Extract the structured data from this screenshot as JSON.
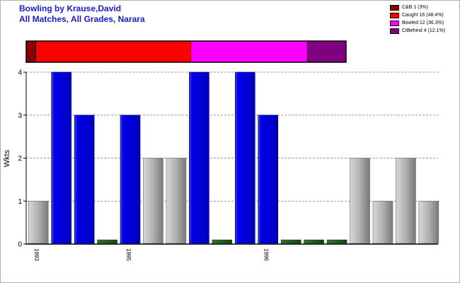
{
  "title_line1": "Bowling by Krause,David",
  "title_line2": "All Matches, All Grades, Narara",
  "colors": {
    "title": "#1a1ad0",
    "wicket_bar": "#0000e0",
    "zero_bar": "#1a5e1a",
    "none_bar": "#a8a8a8",
    "candb": "#8b0000",
    "caught": "#ff0000",
    "bowled": "#ff00ff",
    "ctbehind": "#800080"
  },
  "legend": [
    {
      "label": "C&B 1 (3%)",
      "color": "#8b0000"
    },
    {
      "label": "Caught 16 (48.4%)",
      "color": "#ff0000"
    },
    {
      "label": "Bowled 12 (36.3%)",
      "color": "#ff00ff"
    },
    {
      "label": "CtBehind 4 (12.1%)",
      "color": "#800080"
    }
  ],
  "chart_data": {
    "type": "bar",
    "ylabel": "Wkts",
    "ylim": [
      0,
      4
    ],
    "yticks": [
      0,
      1,
      2,
      3,
      4
    ],
    "grid": "horizontal dashed",
    "x_labels": [
      {
        "index": 0,
        "text": "1993"
      },
      {
        "index": 4,
        "text": "1995"
      },
      {
        "index": 10,
        "text": "1996"
      }
    ],
    "bars": [
      {
        "value": 1,
        "kind": "none"
      },
      {
        "value": 4,
        "kind": "wickets"
      },
      {
        "value": 3,
        "kind": "wickets"
      },
      {
        "value": 0,
        "kind": "zero"
      },
      {
        "value": 3,
        "kind": "wickets"
      },
      {
        "value": 2,
        "kind": "none"
      },
      {
        "value": 2,
        "kind": "none"
      },
      {
        "value": 4,
        "kind": "wickets"
      },
      {
        "value": 0,
        "kind": "zero"
      },
      {
        "value": 4,
        "kind": "wickets"
      },
      {
        "value": 3,
        "kind": "wickets"
      },
      {
        "value": 0,
        "kind": "zero"
      },
      {
        "value": 0,
        "kind": "zero"
      },
      {
        "value": 0,
        "kind": "zero"
      },
      {
        "value": 2,
        "kind": "none"
      },
      {
        "value": 1,
        "kind": "none"
      },
      {
        "value": 2,
        "kind": "none"
      },
      {
        "value": 1,
        "kind": "none"
      }
    ],
    "dismissal_breakdown": [
      {
        "name": "C&B",
        "count": 1,
        "percent": 3
      },
      {
        "name": "Caught",
        "count": 16,
        "percent": 48.4
      },
      {
        "name": "Bowled",
        "count": 12,
        "percent": 36.3
      },
      {
        "name": "CtBehind",
        "count": 4,
        "percent": 12.1
      }
    ]
  }
}
